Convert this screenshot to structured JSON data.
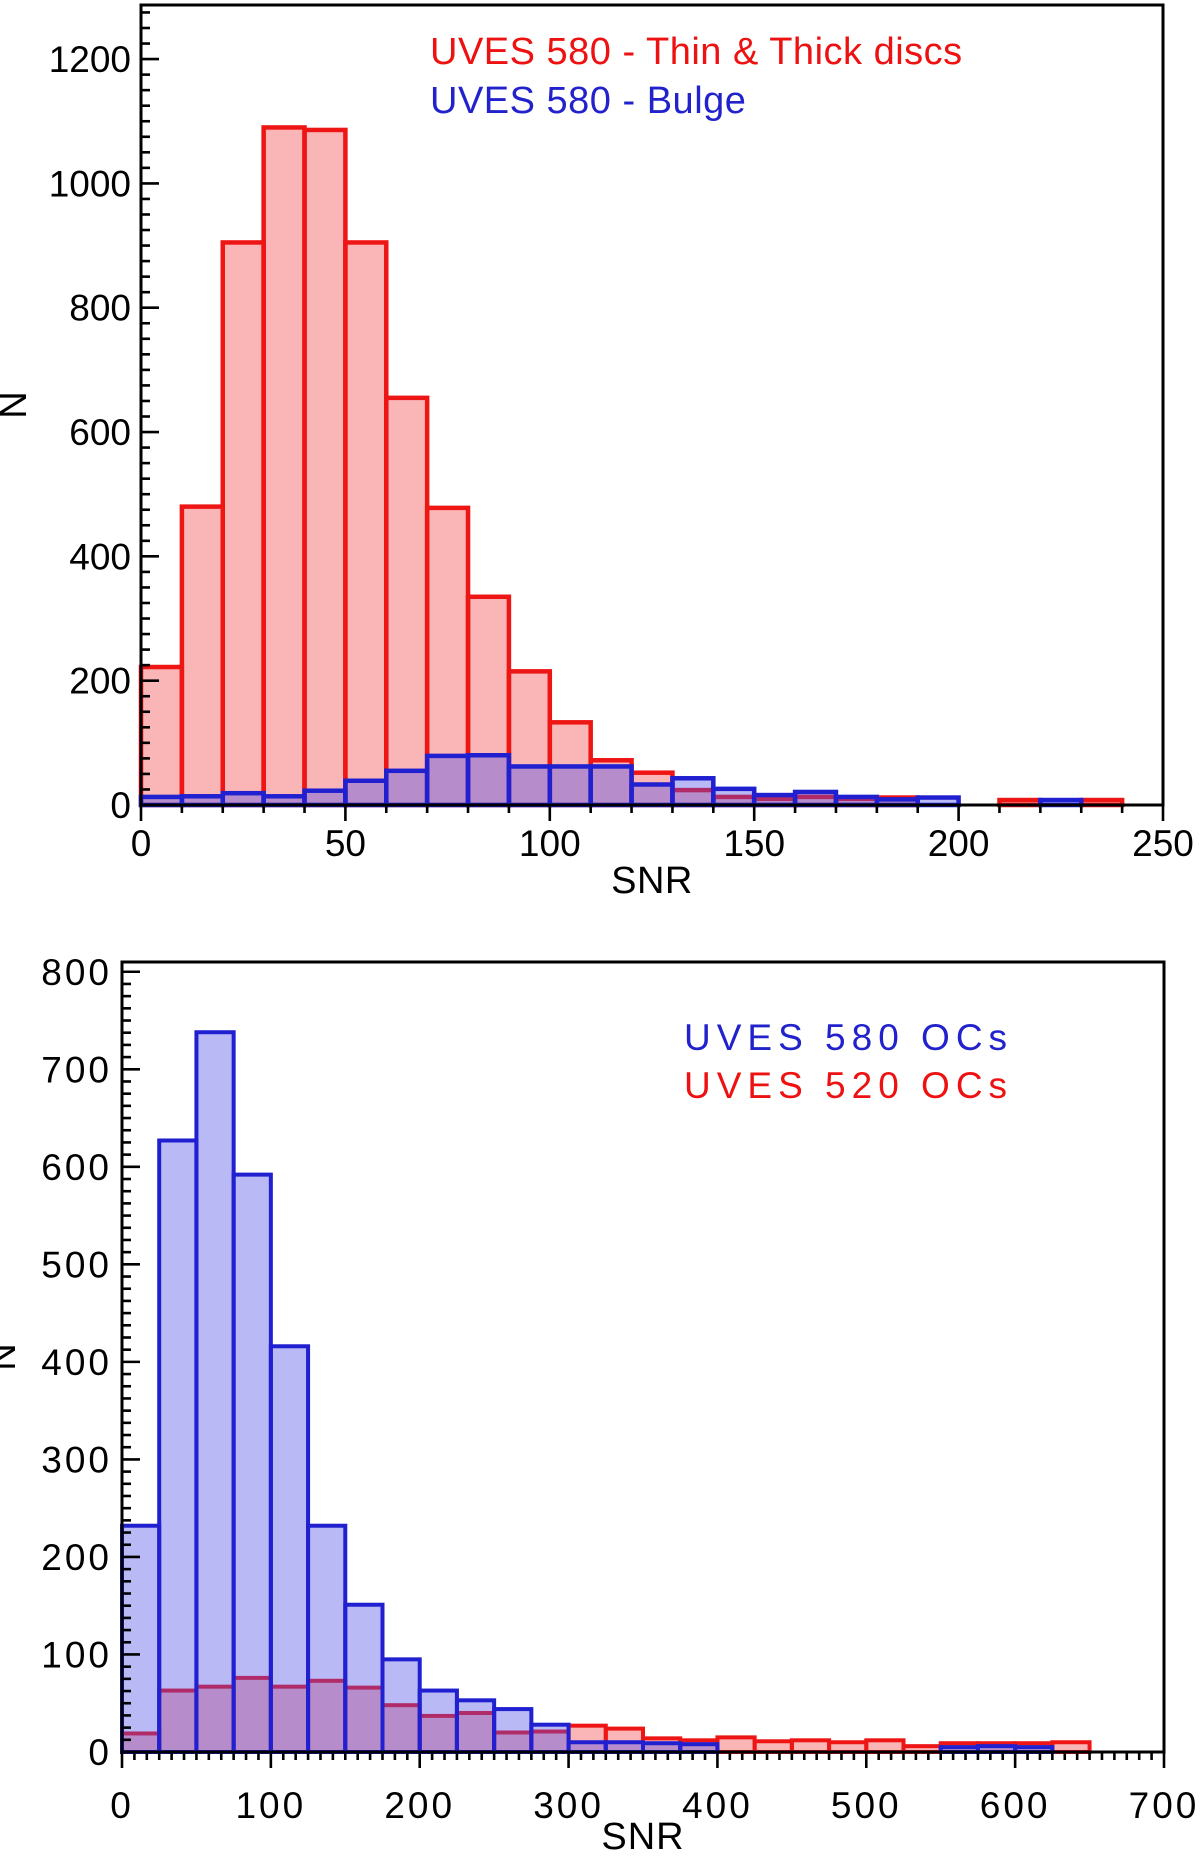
{
  "figure": {
    "background": "#ffffff",
    "text_color": "#000000"
  },
  "chart_data": [
    {
      "type": "bar",
      "subtype": "overlaid-step-histogram",
      "panel": "top",
      "xlabel": "SNR",
      "ylabel": "N",
      "xlim": [
        0,
        250
      ],
      "ylim": [
        0,
        1287
      ],
      "x_major_ticks": [
        0,
        50,
        100,
        150,
        200,
        250
      ],
      "y_major_ticks": [
        0,
        200,
        400,
        600,
        800,
        1000,
        1200
      ],
      "bin_width": 10,
      "bin_start": 0,
      "grid": false,
      "legend_position": "upper-right-inside",
      "legend": [
        {
          "label": "UVES 580 - Thin & Thick discs",
          "color": "#ee1111"
        },
        {
          "label": "UVES 580 - Bulge",
          "color": "#2222cc"
        }
      ],
      "series": [
        {
          "name": "UVES 580 - Thin & Thick discs",
          "stroke": "#ee1515",
          "fill": "#f25050",
          "fill_opacity": 0.42,
          "values": [
            222,
            480,
            905,
            1090,
            1086,
            905,
            655,
            478,
            335,
            215,
            133,
            72,
            52,
            24,
            13,
            10,
            13,
            10,
            12,
            0,
            0,
            8,
            0,
            8
          ]
        },
        {
          "name": "UVES 580 - Bulge",
          "stroke": "#2020d0",
          "fill": "#5050e8",
          "fill_opacity": 0.4,
          "values": [
            13,
            14,
            19,
            14,
            23,
            39,
            55,
            79,
            80,
            62,
            62,
            62,
            33,
            43,
            26,
            16,
            21,
            13,
            9,
            12,
            0,
            0,
            8,
            0
          ]
        }
      ]
    },
    {
      "type": "bar",
      "subtype": "overlaid-step-histogram",
      "panel": "bottom",
      "xlabel": "SNR",
      "ylabel": "N",
      "xlim": [
        0,
        700
      ],
      "ylim": [
        0,
        810
      ],
      "x_major_ticks": [
        0,
        100,
        200,
        300,
        400,
        500,
        600,
        700
      ],
      "y_major_ticks": [
        0,
        100,
        200,
        300,
        400,
        500,
        600,
        700,
        800
      ],
      "bin_width": 25,
      "bin_start": 0,
      "grid": false,
      "legend_position": "upper-right-inside",
      "legend": [
        {
          "label": "UVES 580  OCs",
          "color": "#2222cc"
        },
        {
          "label": "UVES 520  OCs",
          "color": "#ee1111"
        }
      ],
      "series": [
        {
          "name": "UVES 520  OCs",
          "stroke": "#ee1515",
          "fill": "#f25050",
          "fill_opacity": 0.42,
          "values": [
            19,
            63,
            67,
            76,
            67,
            73,
            66,
            48,
            37,
            40,
            20,
            21,
            27,
            24,
            14,
            12,
            15,
            11,
            12,
            10,
            12,
            6,
            9,
            9,
            9,
            10,
            0,
            0
          ]
        },
        {
          "name": "UVES 580  OCs",
          "stroke": "#2020d0",
          "fill": "#5050e8",
          "fill_opacity": 0.4,
          "values": [
            232,
            627,
            738,
            592,
            416,
            232,
            151,
            95,
            63,
            53,
            44,
            28,
            10,
            10,
            9,
            8,
            0,
            0,
            0,
            0,
            0,
            0,
            5,
            6,
            5,
            0,
            0,
            0
          ]
        }
      ]
    }
  ]
}
